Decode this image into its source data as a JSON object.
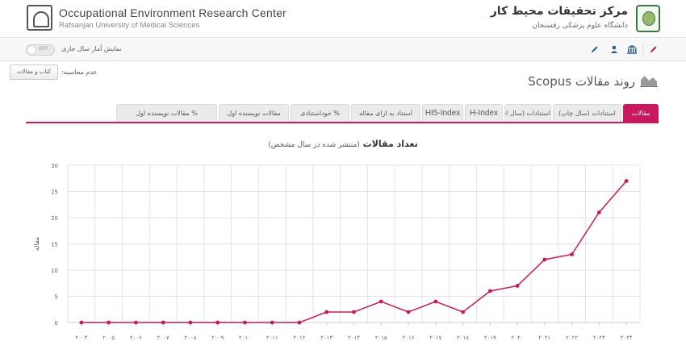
{
  "header": {
    "en_title": "Occupational Environment Research Center",
    "en_subtitle": "Rafsanjan University of Medical Sciences",
    "fa_title": "مرکز تحقیقات محیط کار",
    "fa_subtitle": "دانشگاه علوم پزشکی رفسنجان"
  },
  "toolbar": {
    "toggle_text": "OFF",
    "toggle_label": "نمایش آمار سال جاری",
    "icons": [
      "pencil-icon",
      "user-icon",
      "bank-icon",
      "pencil-icon"
    ]
  },
  "side": {
    "dropdown_label": "کتاب و مقالات",
    "lack_label": "عدم محاسبه:"
  },
  "page": {
    "heading": "روند مقالات Scopus"
  },
  "tabs": [
    {
      "label": "مقالات",
      "active": true
    },
    {
      "label": "استنادات (سال چاپ)",
      "active": false
    },
    {
      "label": "استنادات (سال استناد)",
      "active": false
    },
    {
      "label": "H-Index",
      "active": false
    },
    {
      "label": "HI5-Index",
      "active": false
    },
    {
      "label": "استناد به ازای مقاله",
      "active": false
    },
    {
      "label": "% خوداستنادی",
      "active": false
    },
    {
      "label": "مقالات نویسنده اول",
      "active": false
    },
    {
      "label": "% مقالات نویسنده اول",
      "active": false
    }
  ],
  "colors": {
    "accent": "#c7195b",
    "grid": "#e3e3e3",
    "axis": "#cccccc"
  },
  "chart_data": {
    "type": "line",
    "title": "تعداد مقالات",
    "subtitle": "(منتشر شده در سال مشخص)",
    "ylabel": "مقاله",
    "xlabel": "",
    "x": [
      "۲۰۰۴",
      "۲۰۰۵",
      "۲۰۰۶",
      "۲۰۰۷",
      "۲۰۰۸",
      "۲۰۰۹",
      "۲۰۱۰",
      "۲۰۱۱",
      "۲۰۱۲",
      "۲۰۱۳",
      "۲۰۱۴",
      "۲۰۱۵",
      "۲۰۱۶",
      "۲۰۱۷",
      "۲۰۱۸",
      "۲۰۱۹",
      "۲۰۲۰",
      "۲۰۲۱",
      "۲۰۲۲",
      "۲۰۲۳",
      "۲۰۲۴"
    ],
    "series": [
      {
        "values": [
          0,
          0,
          0,
          0,
          0,
          0,
          0,
          0,
          0,
          2,
          2,
          4,
          2,
          4,
          2,
          6,
          7,
          12,
          13,
          21,
          27
        ]
      }
    ],
    "ylim": [
      0,
      30
    ],
    "yticks": [
      0,
      5,
      10,
      15,
      20,
      25,
      30
    ],
    "grid": true,
    "legend": "none"
  }
}
